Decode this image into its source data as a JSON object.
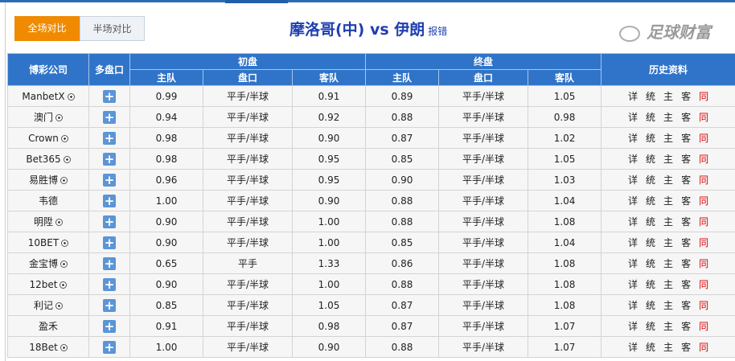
{
  "toggle": {
    "full": "全场对比",
    "half": "半场对比"
  },
  "match": {
    "title": "摩洛哥(中) vs 伊朗",
    "report": "报错"
  },
  "headers": {
    "company": "博彩公司",
    "multi": "多盘口",
    "initial": "初盘",
    "final": "终盘",
    "history": "历史资料",
    "home": "主队",
    "line": "盘口",
    "away": "客队"
  },
  "history_links": [
    "详",
    "统",
    "主",
    "客",
    "同"
  ],
  "rows": [
    {
      "company": "ManbetX",
      "ball": true,
      "ih": "0.99",
      "il": "平手/半球",
      "ia": "0.91",
      "fh": "0.89",
      "fl": "平手/半球",
      "fa": "1.05"
    },
    {
      "company": "澳门",
      "ball": true,
      "ih": "0.94",
      "il": "平手/半球",
      "ia": "0.92",
      "fh": "0.88",
      "fl": "平手/半球",
      "fa": "0.98"
    },
    {
      "company": "Crown",
      "ball": true,
      "ih": "0.98",
      "il": "平手/半球",
      "ia": "0.90",
      "fh": "0.87",
      "fl": "平手/半球",
      "fa": "1.02"
    },
    {
      "company": "Bet365",
      "ball": true,
      "ih": "0.98",
      "il": "平手/半球",
      "ia": "0.95",
      "fh": "0.85",
      "fl": "平手/半球",
      "fa": "1.05"
    },
    {
      "company": "易胜博",
      "ball": true,
      "ih": "0.96",
      "il": "平手/半球",
      "ia": "0.95",
      "fh": "0.90",
      "fl": "平手/半球",
      "fa": "1.03"
    },
    {
      "company": "韦德",
      "ball": false,
      "ih": "1.00",
      "il": "平手/半球",
      "ia": "0.90",
      "fh": "0.88",
      "fl": "平手/半球",
      "fa": "1.04"
    },
    {
      "company": "明陞",
      "ball": true,
      "ih": "0.90",
      "il": "平手/半球",
      "ia": "1.00",
      "fh": "0.88",
      "fl": "平手/半球",
      "fa": "1.08"
    },
    {
      "company": "10BET",
      "ball": true,
      "ih": "0.90",
      "il": "平手/半球",
      "ia": "1.00",
      "fh": "0.85",
      "fl": "平手/半球",
      "fa": "1.04"
    },
    {
      "company": "金宝博",
      "ball": true,
      "ih": "0.65",
      "il": "平手",
      "ia": "1.33",
      "fh": "0.86",
      "fl": "平手/半球",
      "fa": "1.08"
    },
    {
      "company": "12bet",
      "ball": true,
      "ih": "0.90",
      "il": "平手/半球",
      "ia": "1.00",
      "fh": "0.88",
      "fl": "平手/半球",
      "fa": "1.08"
    },
    {
      "company": "利记",
      "ball": true,
      "ih": "0.85",
      "il": "平手/半球",
      "ia": "1.05",
      "fh": "0.87",
      "fl": "平手/半球",
      "fa": "1.08"
    },
    {
      "company": "盈禾",
      "ball": false,
      "ih": "0.91",
      "il": "平手/半球",
      "ia": "0.98",
      "fh": "0.87",
      "fl": "平手/半球",
      "fa": "1.07"
    },
    {
      "company": "18Bet",
      "ball": true,
      "ih": "1.00",
      "il": "平手/半球",
      "ia": "0.90",
      "fh": "0.88",
      "fl": "平手/半球",
      "fa": "1.07"
    }
  ],
  "watermark": "足球财富",
  "colors": {
    "header": "#2f74c8",
    "accent": "#f08a00",
    "title": "#1f3fb0",
    "same": "#dd0000"
  }
}
